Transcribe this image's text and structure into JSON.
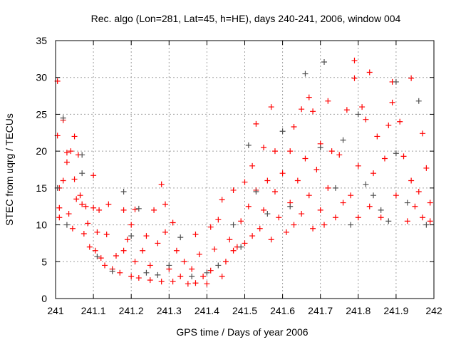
{
  "chart_data": {
    "type": "scatter",
    "title": "Rec. algo (Lon=281, Lat=45, h=HE), days 240-241, 2006, window 004",
    "xlabel": "GPS time / Days of year 2006",
    "ylabel": "STEC from uqrg / TECUs",
    "xlim": [
      241,
      242
    ],
    "ylim": [
      0,
      35
    ],
    "xticks": [
      241,
      241.1,
      241.2,
      241.3,
      241.4,
      241.5,
      241.6,
      241.7,
      241.8,
      241.9,
      242
    ],
    "xtick_labels": [
      "241",
      "241.1",
      "241.2",
      "241.3",
      "241.4",
      "241.5",
      "241.6",
      "241.7",
      "241.8",
      "241.9",
      "242"
    ],
    "yticks": [
      0,
      5,
      10,
      15,
      20,
      25,
      30,
      35
    ],
    "ytick_labels": [
      "0",
      "5",
      "10",
      "15",
      "20",
      "25",
      "30",
      "35"
    ],
    "grid": true,
    "legend": "none",
    "series": [
      {
        "name": "red",
        "color": "#ff0000",
        "points": [
          [
            241.005,
            29.5
          ],
          [
            241.005,
            22.1
          ],
          [
            241.01,
            15
          ],
          [
            241.01,
            12.3
          ],
          [
            241.01,
            11
          ],
          [
            241.02,
            24.2
          ],
          [
            241.02,
            16
          ],
          [
            241.03,
            19.8
          ],
          [
            241.03,
            18.5
          ],
          [
            241.035,
            11.5
          ],
          [
            241.04,
            20
          ],
          [
            241.045,
            9.5
          ],
          [
            241.05,
            22
          ],
          [
            241.05,
            16.2
          ],
          [
            241.055,
            13.5
          ],
          [
            241.06,
            19.5
          ],
          [
            241.065,
            14
          ],
          [
            241.07,
            12.8
          ],
          [
            241.075,
            8.8
          ],
          [
            241.08,
            12.5
          ],
          [
            241.085,
            10.2
          ],
          [
            241.09,
            7
          ],
          [
            241.1,
            12.3
          ],
          [
            241.1,
            16.7
          ],
          [
            241.105,
            6.5
          ],
          [
            241.11,
            9
          ],
          [
            241.115,
            12
          ],
          [
            241.12,
            5.5
          ],
          [
            241.13,
            4.5
          ],
          [
            241.135,
            8.7
          ],
          [
            241.14,
            12.8
          ],
          [
            241.15,
            4
          ],
          [
            241.16,
            5.8
          ],
          [
            241.17,
            3.5
          ],
          [
            241.18,
            12
          ],
          [
            241.18,
            6.5
          ],
          [
            241.19,
            8
          ],
          [
            241.2,
            3
          ],
          [
            241.2,
            10
          ],
          [
            241.21,
            12.1
          ],
          [
            241.21,
            5
          ],
          [
            241.22,
            2.8
          ],
          [
            241.23,
            6.5
          ],
          [
            241.24,
            8.5
          ],
          [
            241.25,
            2.5
          ],
          [
            241.25,
            4.5
          ],
          [
            241.26,
            12
          ],
          [
            241.27,
            7.5
          ],
          [
            241.28,
            15.5
          ],
          [
            241.28,
            2.3
          ],
          [
            241.29,
            12.8
          ],
          [
            241.29,
            9
          ],
          [
            241.3,
            4
          ],
          [
            241.31,
            10.3
          ],
          [
            241.31,
            2.3
          ],
          [
            241.32,
            6.5
          ],
          [
            241.33,
            3
          ],
          [
            241.34,
            5
          ],
          [
            241.35,
            2
          ],
          [
            241.36,
            4
          ],
          [
            241.37,
            8.7
          ],
          [
            241.37,
            2.1
          ],
          [
            241.38,
            6
          ],
          [
            241.39,
            3
          ],
          [
            241.4,
            2
          ],
          [
            241.41,
            3.8
          ],
          [
            241.41,
            9.7
          ],
          [
            241.42,
            6.7
          ],
          [
            241.43,
            10.7
          ],
          [
            241.44,
            13.4
          ],
          [
            241.44,
            3
          ],
          [
            241.45,
            5
          ],
          [
            241.46,
            8
          ],
          [
            241.47,
            14.7
          ],
          [
            241.47,
            6.5
          ],
          [
            241.48,
            7
          ],
          [
            241.49,
            10.5
          ],
          [
            241.5,
            15.8
          ],
          [
            241.5,
            7.5
          ],
          [
            241.51,
            12.5
          ],
          [
            241.52,
            18
          ],
          [
            241.52,
            8.5
          ],
          [
            241.53,
            23.7
          ],
          [
            241.53,
            14.7
          ],
          [
            241.54,
            9.5
          ],
          [
            241.55,
            20.5
          ],
          [
            241.55,
            12
          ],
          [
            241.56,
            16
          ],
          [
            241.57,
            26
          ],
          [
            241.57,
            8
          ],
          [
            241.58,
            20
          ],
          [
            241.58,
            14.5
          ],
          [
            241.59,
            11
          ],
          [
            241.6,
            17
          ],
          [
            241.61,
            9
          ],
          [
            241.62,
            20
          ],
          [
            241.62,
            13
          ],
          [
            241.63,
            23.3
          ],
          [
            241.63,
            10
          ],
          [
            241.64,
            16
          ],
          [
            241.65,
            25.7
          ],
          [
            241.65,
            11.5
          ],
          [
            241.66,
            19
          ],
          [
            241.67,
            27.3
          ],
          [
            241.67,
            14
          ],
          [
            241.68,
            25.4
          ],
          [
            241.68,
            9.5
          ],
          [
            241.69,
            17.5
          ],
          [
            241.7,
            21
          ],
          [
            241.7,
            12
          ],
          [
            241.71,
            10
          ],
          [
            241.72,
            26.8
          ],
          [
            241.72,
            15
          ],
          [
            241.73,
            20
          ],
          [
            241.74,
            11
          ],
          [
            241.75,
            19.5
          ],
          [
            241.76,
            13
          ],
          [
            241.77,
            25.6
          ],
          [
            241.78,
            14
          ],
          [
            241.79,
            32.3
          ],
          [
            241.79,
            29.9
          ],
          [
            241.8,
            18
          ],
          [
            241.8,
            11
          ],
          [
            241.81,
            26
          ],
          [
            241.82,
            24.3
          ],
          [
            241.83,
            30.7
          ],
          [
            241.83,
            12.5
          ],
          [
            241.84,
            17
          ],
          [
            241.85,
            22
          ],
          [
            241.86,
            11
          ],
          [
            241.87,
            19
          ],
          [
            241.88,
            23.5
          ],
          [
            241.89,
            29.4
          ],
          [
            241.89,
            26.6
          ],
          [
            241.9,
            14
          ],
          [
            241.91,
            24
          ],
          [
            241.92,
            19.3
          ],
          [
            241.93,
            10.5
          ],
          [
            241.94,
            29.9
          ],
          [
            241.94,
            16
          ],
          [
            241.95,
            12.5
          ],
          [
            241.96,
            14.5
          ],
          [
            241.97,
            22.4
          ],
          [
            241.97,
            11
          ],
          [
            241.98,
            17.7
          ],
          [
            241.99,
            13
          ],
          [
            241.99,
            10.5
          ]
        ]
      },
      {
        "name": "gray",
        "color": "#505050",
        "points": [
          [
            241.005,
            15
          ],
          [
            241.02,
            24.5
          ],
          [
            241.03,
            10
          ],
          [
            241.07,
            19.5
          ],
          [
            241.07,
            17
          ],
          [
            241.11,
            5.7
          ],
          [
            241.15,
            3.7
          ],
          [
            241.18,
            14.5
          ],
          [
            241.2,
            8.5
          ],
          [
            241.22,
            12.2
          ],
          [
            241.24,
            3.5
          ],
          [
            241.27,
            3.2
          ],
          [
            241.3,
            4.5
          ],
          [
            241.33,
            8.3
          ],
          [
            241.36,
            3
          ],
          [
            241.4,
            3.5
          ],
          [
            241.43,
            4.5
          ],
          [
            241.47,
            10
          ],
          [
            241.49,
            7
          ],
          [
            241.51,
            20.8
          ],
          [
            241.53,
            14.5
          ],
          [
            241.56,
            11.5
          ],
          [
            241.6,
            22.7
          ],
          [
            241.62,
            12.5
          ],
          [
            241.66,
            30.5
          ],
          [
            241.7,
            20.5
          ],
          [
            241.71,
            32.1
          ],
          [
            241.74,
            15
          ],
          [
            241.76,
            21.5
          ],
          [
            241.78,
            10
          ],
          [
            241.8,
            25
          ],
          [
            241.82,
            15.5
          ],
          [
            241.84,
            14
          ],
          [
            241.86,
            12
          ],
          [
            241.88,
            10.5
          ],
          [
            241.9,
            29.4
          ],
          [
            241.9,
            19.7
          ],
          [
            241.93,
            13
          ],
          [
            241.96,
            26.8
          ],
          [
            241.98,
            10
          ]
        ]
      }
    ]
  }
}
